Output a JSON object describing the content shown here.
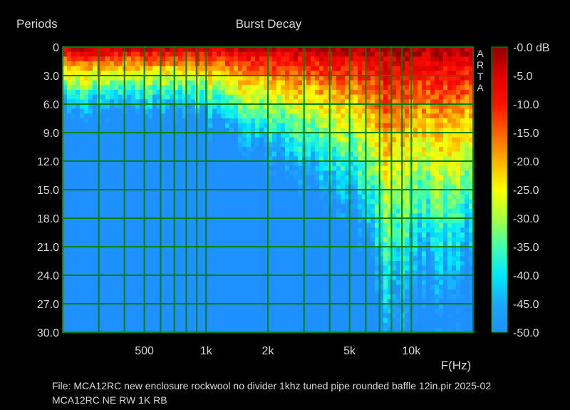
{
  "chart_data": {
    "type": "heatmap",
    "title": "Burst Decay",
    "ylabel": "Periods",
    "xlabel": "F(Hz)",
    "x_scale": "log",
    "xlim": [
      200,
      20000
    ],
    "ylim": [
      0,
      30
    ],
    "x_ticks": [
      {
        "value": 500,
        "label": "500"
      },
      {
        "value": 1000,
        "label": "1k"
      },
      {
        "value": 2000,
        "label": "2k"
      },
      {
        "value": 5000,
        "label": "5k"
      },
      {
        "value": 10000,
        "label": "10k"
      }
    ],
    "y_ticks": [
      {
        "value": 0,
        "label": "0"
      },
      {
        "value": 3,
        "label": "3.0"
      },
      {
        "value": 6,
        "label": "6.0"
      },
      {
        "value": 9,
        "label": "9.0"
      },
      {
        "value": 12,
        "label": "12.0"
      },
      {
        "value": 15,
        "label": "15.0"
      },
      {
        "value": 18,
        "label": "18.0"
      },
      {
        "value": 21,
        "label": "21.0"
      },
      {
        "value": 24,
        "label": "24.0"
      },
      {
        "value": 27,
        "label": "27.0"
      },
      {
        "value": 30,
        "label": "30.0"
      }
    ],
    "colorbar": {
      "unit": "dB",
      "range": [
        -50,
        0
      ],
      "ticks": [
        "-0.0 dB",
        "-5.0",
        "-10.0",
        "-15.0",
        "-20.0",
        "-25.0",
        "-30.0",
        "-35.0",
        "-40.0",
        "-45.0",
        "-50.0"
      ]
    },
    "grid": true,
    "grid_color": "#008000",
    "decay_profile": {
      "frequency_hz": [
        200,
        300,
        400,
        500,
        700,
        1000,
        1500,
        2000,
        3000,
        4000,
        5000,
        6000,
        7000,
        8000,
        9000,
        10000,
        12000,
        15000,
        20000
      ],
      "periods_to_minus_50db": [
        7,
        7,
        7,
        7,
        7,
        8,
        10,
        12,
        14,
        16,
        18,
        21,
        30,
        30,
        30,
        28,
        26,
        26,
        24
      ]
    },
    "side_label": [
      "A",
      "R",
      "T",
      "A"
    ]
  },
  "footer": {
    "line1": "File: MCA12RC new enclosure rockwool no divider 1khz tuned pipe rounded baffle 12in.pir  2025-02",
    "line2": "MCA12RC NE RW 1K RB"
  }
}
